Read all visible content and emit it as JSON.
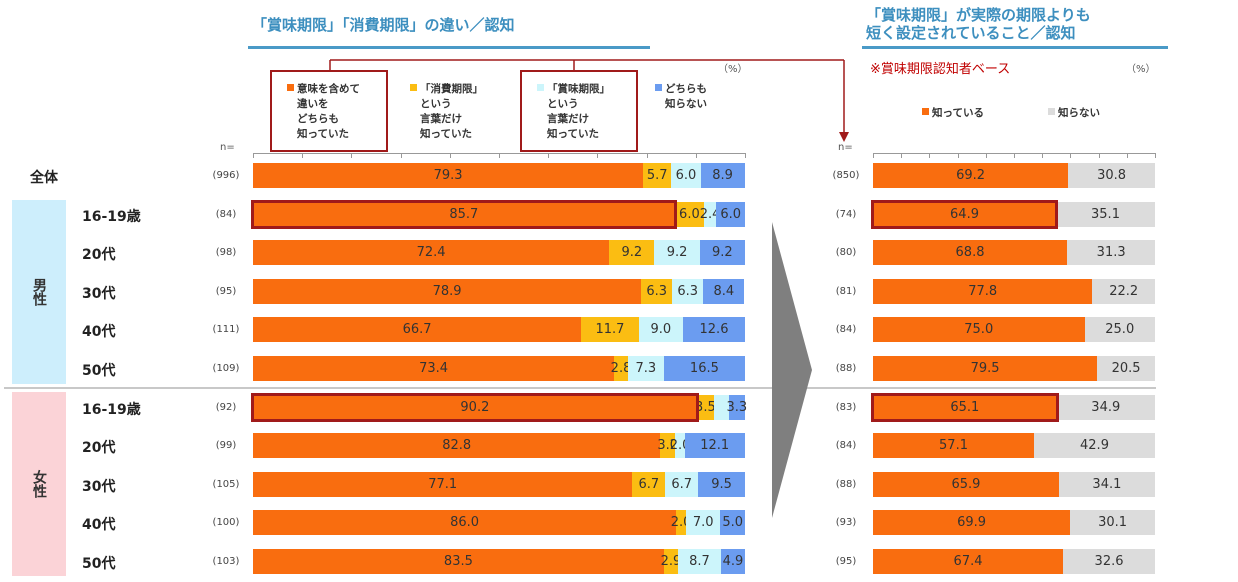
{
  "left_title": "「賞味期限」「消費期限」の違い／認知",
  "right_title_line1": "「賞味期限」が実際の期限よりも",
  "right_title_line2": "短く設定されていること／認知",
  "right_note": "※賞味期限認知者ベース",
  "unit": "（%）",
  "n_label": "n=",
  "gender_male": "男性",
  "gender_female": "女性",
  "colors": {
    "orange": "#f96d0f",
    "yellow": "#fbbd12",
    "lightcyan": "#ccf5fb",
    "blue": "#6b9cf0",
    "gray": "#dcdcdc",
    "highlight": "#a01a1a",
    "title": "#3d8fbf"
  },
  "chart_data": [
    {
      "type": "bar",
      "orientation": "horizontal-stacked",
      "title": "「賞味期限」「消費期限」の違い／認知",
      "categories": [
        "全体",
        "16-19歳",
        "20代",
        "30代",
        "40代",
        "50代",
        "16-19歳",
        "20代",
        "30代",
        "40代",
        "50代"
      ],
      "groups": [
        "",
        "男性",
        "男性",
        "男性",
        "男性",
        "男性",
        "女性",
        "女性",
        "女性",
        "女性",
        "女性"
      ],
      "n": [
        "(996)",
        "(84)",
        "(98)",
        "(95)",
        "(111)",
        "(109)",
        "(92)",
        "(99)",
        "(105)",
        "(100)",
        "(103)"
      ],
      "series": [
        {
          "name": "意味を含めて違いをどちらも知っていた",
          "legend_lines": [
            "意味を含めて",
            "違いを",
            "どちらも",
            "知っていた"
          ],
          "color": "#f96d0f",
          "values": [
            79.3,
            85.7,
            72.4,
            78.9,
            66.7,
            73.4,
            90.2,
            82.8,
            77.1,
            86.0,
            83.5
          ],
          "labels": [
            "79.3",
            "85.7",
            "72.4",
            "78.9",
            "66.7",
            "73.4",
            "90.2",
            "82.8",
            "77.1",
            "86.0",
            "83.5"
          ]
        },
        {
          "name": "「消費期限」という言葉だけ知っていた",
          "legend_lines": [
            "「消費期限」",
            "という",
            "言葉だけ",
            "知っていた"
          ],
          "color": "#fbbd12",
          "values": [
            5.7,
            6.0,
            9.2,
            6.3,
            11.7,
            2.8,
            3.5,
            3.0,
            6.7,
            2.0,
            2.9
          ],
          "labels": [
            "5.7",
            "6.0",
            "9.2",
            "6.3",
            "11.7",
            "2.8",
            "3.5",
            "3.0",
            "6.7",
            "2.0",
            "2.9"
          ]
        },
        {
          "name": "「賞味期限」という言葉だけ知っていた",
          "legend_lines": [
            "「賞味期限」",
            "という",
            "言葉だけ",
            "知っていた"
          ],
          "color": "#ccf5fb",
          "values": [
            6.0,
            2.4,
            9.2,
            6.3,
            9.0,
            7.3,
            3.0,
            2.0,
            6.7,
            7.0,
            8.7
          ],
          "labels": [
            "6.0",
            "2.4",
            "9.2",
            "6.3",
            "9.0",
            "7.3",
            "",
            "2.0",
            "6.7",
            "7.0",
            "8.7"
          ]
        },
        {
          "name": "どちらも知らない",
          "legend_lines": [
            "どちらも",
            "知らない"
          ],
          "color": "#6b9cf0",
          "values": [
            8.9,
            6.0,
            9.2,
            8.4,
            12.6,
            16.5,
            3.3,
            12.1,
            9.5,
            5.0,
            4.9
          ],
          "labels": [
            "8.9",
            "6.0",
            "9.2",
            "8.4",
            "12.6",
            "16.5",
            "3.3",
            "12.1",
            "9.5",
            "5.0",
            "4.9"
          ]
        }
      ],
      "xlim": [
        0,
        100
      ],
      "highlighted_rows": [
        1,
        6
      ]
    },
    {
      "type": "bar",
      "orientation": "horizontal-stacked",
      "title": "「賞味期限」が実際の期限よりも短く設定されていること／認知",
      "categories": [
        "全体",
        "16-19歳",
        "20代",
        "30代",
        "40代",
        "50代",
        "16-19歳",
        "20代",
        "30代",
        "40代",
        "50代"
      ],
      "n": [
        "(850)",
        "(74)",
        "(80)",
        "(81)",
        "(84)",
        "(88)",
        "(83)",
        "(84)",
        "(88)",
        "(93)",
        "(95)"
      ],
      "series": [
        {
          "name": "知っている",
          "color": "#f96d0f",
          "values": [
            69.2,
            64.9,
            68.8,
            77.8,
            75.0,
            79.5,
            65.1,
            57.1,
            65.9,
            69.9,
            67.4
          ],
          "labels": [
            "69.2",
            "64.9",
            "68.8",
            "77.8",
            "75.0",
            "79.5",
            "65.1",
            "57.1",
            "65.9",
            "69.9",
            "67.4"
          ]
        },
        {
          "name": "知らない",
          "color": "#dcdcdc",
          "values": [
            30.8,
            35.1,
            31.3,
            22.2,
            25.0,
            20.5,
            34.9,
            42.9,
            34.1,
            30.1,
            32.6
          ],
          "labels": [
            "30.8",
            "35.1",
            "31.3",
            "22.2",
            "25.0",
            "20.5",
            "34.9",
            "42.9",
            "34.1",
            "30.1",
            "32.6"
          ]
        }
      ],
      "xlim": [
        0,
        100
      ],
      "highlighted_rows": [
        1,
        6
      ]
    }
  ]
}
